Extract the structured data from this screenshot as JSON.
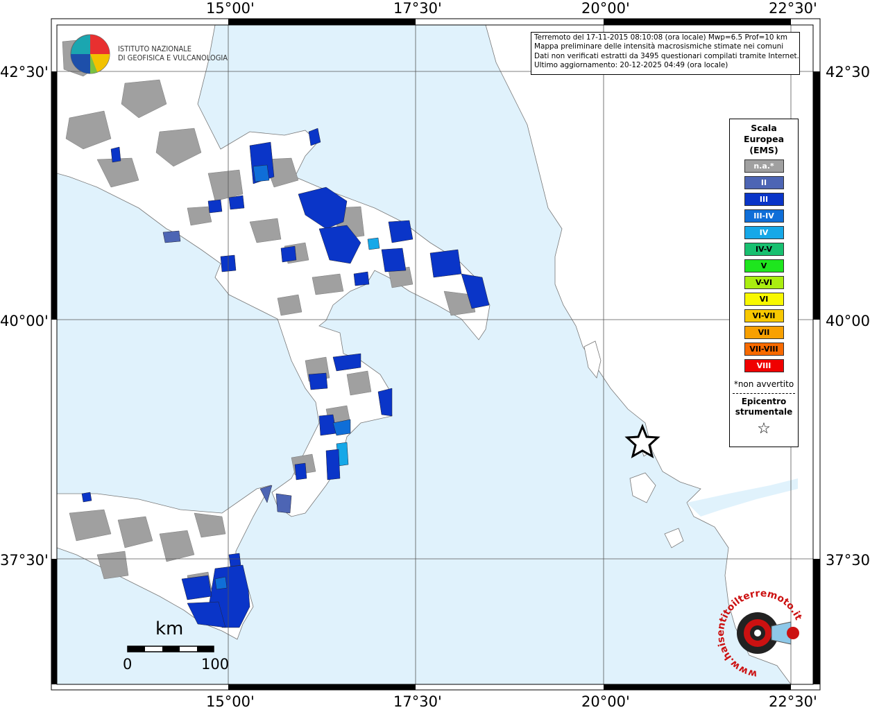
{
  "coordinates": {
    "top": [
      "15°00'",
      "17°30'",
      "20°00'",
      "22°30'"
    ],
    "bottom": [
      "15°00'",
      "17°30'",
      "20°00'",
      "22°30'"
    ],
    "left": [
      "42°30'",
      "40°00'",
      "37°30'"
    ],
    "right": [
      "42°30'",
      "40°00'",
      "37°30'"
    ]
  },
  "logo": {
    "line1": "ISTITUTO NAZIONALE",
    "line2": "DI GEOFISICA E VULCANOLOGIA"
  },
  "info": {
    "line1": "Terremoto del 17-11-2015 08:10:08 (ora locale) Mwp=6.5 Prof=10 km",
    "line2": "Mappa preliminare delle intensità macrosismiche stimate nei comuni",
    "line3": "Dati non verificati estratti da 3495 questionari compilati tramite Internet.",
    "line4": "Ultimo aggiornamento: 20-12-2025 04:49 (ora locale)"
  },
  "legend": {
    "title1": "Scala",
    "title2": "Europea",
    "title3": "(EMS)",
    "items": [
      {
        "label": "n.a.*",
        "color": "#a0a0a0"
      },
      {
        "label": "II",
        "color": "#4d65b4"
      },
      {
        "label": "III",
        "color": "#0a35c8"
      },
      {
        "label": "III-IV",
        "color": "#0f6ed8"
      },
      {
        "label": "IV",
        "color": "#16a8e8"
      },
      {
        "label": "IV-V",
        "color": "#18c070"
      },
      {
        "label": "V",
        "color": "#1ee61e"
      },
      {
        "label": "V-VI",
        "color": "#aaee10"
      },
      {
        "label": "VI",
        "color": "#f8f800"
      },
      {
        "label": "VI-VII",
        "color": "#f8c800"
      },
      {
        "label": "VII",
        "color": "#f8a000"
      },
      {
        "label": "VII-VIII",
        "color": "#f86a00"
      },
      {
        "label": "VIII",
        "color": "#f00000"
      }
    ],
    "note": "*non avvertito",
    "epicenter1": "Epicentro",
    "epicenter2": "strumentale",
    "star": "☆"
  },
  "scale": {
    "unit": "km",
    "min": "0",
    "max": "100"
  },
  "watermark": {
    "text": "www.haisentitoilterremoto.it",
    "color": "#cc1111"
  },
  "colors": {
    "sea": "#e0f2fc",
    "land": "#ffffff",
    "na": "#a0a0a0",
    "grid": "#555555"
  }
}
